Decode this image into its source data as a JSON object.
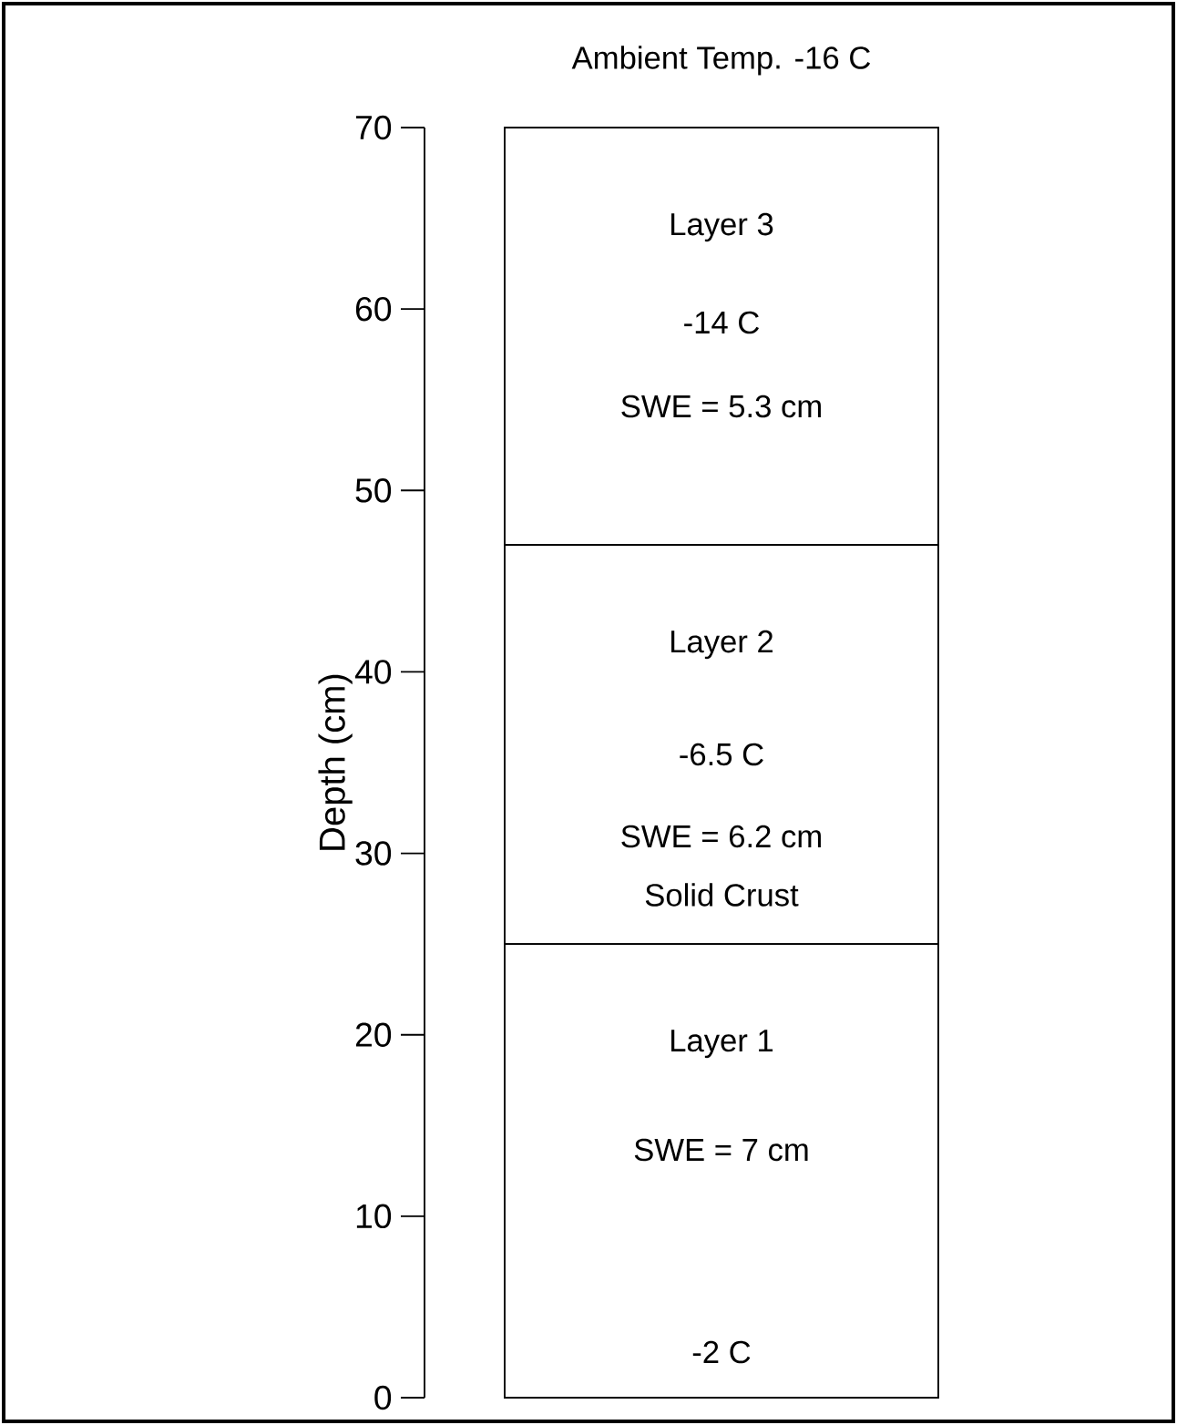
{
  "chart_data": {
    "type": "bar",
    "stacked": true,
    "title": "Ambient Temp. -16 C",
    "ylabel": "Depth (cm)",
    "categories": [
      null
    ],
    "series": [
      {
        "name": "Layer 1",
        "color": "#ffffff",
        "values": [
          25
        ]
      },
      {
        "name": "Layer 2",
        "color": "#ffffff",
        "values": [
          22
        ]
      },
      {
        "name": "Layer 3",
        "color": "#ffffff",
        "values": [
          23
        ]
      }
    ],
    "ylim": [
      0,
      70
    ],
    "yticks": [
      0,
      10,
      20,
      30,
      40,
      50,
      60,
      70
    ],
    "annotations": [
      "-14 C",
      "SWE = 5.3 cm",
      "-6.5 C",
      "SWE = 6.2 cm",
      "Solid Crust",
      "SWE = 7 cm",
      "-2 C"
    ]
  }
}
